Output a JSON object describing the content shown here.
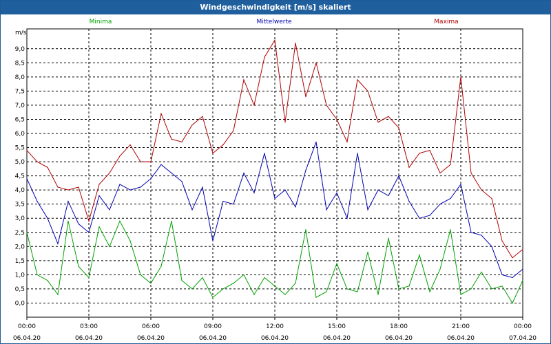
{
  "window": {
    "title": "Windgeschwindigkeit [m/s] skaliert"
  },
  "chart_data": {
    "type": "line",
    "title": "Windgeschwindigkeit [m/s] skaliert",
    "ylabel": "m/s",
    "xlabel": "",
    "ylim": [
      -0.5,
      9.7
    ],
    "y_ticks": [
      "9,0",
      "8,5",
      "8,0",
      "7,5",
      "7,0",
      "6,5",
      "6,0",
      "5,5",
      "5,0",
      "4,5",
      "4,0",
      "3,5",
      "3,0",
      "2,5",
      "2,0",
      "1,5",
      "1,0",
      "0,5",
      "0,0"
    ],
    "x_ticks": [
      {
        "time": "00:00",
        "date": "06.04.20"
      },
      {
        "time": "03:00",
        "date": "06.04.20"
      },
      {
        "time": "06:00",
        "date": "06.04.20"
      },
      {
        "time": "09:00",
        "date": "06.04.20"
      },
      {
        "time": "12:00",
        "date": "06.04.20"
      },
      {
        "time": "15:00",
        "date": "06.04.20"
      },
      {
        "time": "18:00",
        "date": "06.04.20"
      },
      {
        "time": "21:00",
        "date": "06.04.20"
      },
      {
        "time": "00:00",
        "date": "07.04.20"
      }
    ],
    "grid": true,
    "x_hours": [
      0,
      0.5,
      1,
      1.5,
      2,
      2.5,
      3,
      3.5,
      4,
      4.5,
      5,
      5.5,
      6,
      6.5,
      7,
      7.5,
      8,
      8.5,
      9,
      9.5,
      10,
      10.5,
      11,
      11.5,
      12,
      12.5,
      13,
      13.5,
      14,
      14.5,
      15,
      15.5,
      16,
      16.5,
      17,
      17.5,
      18,
      18.5,
      19,
      19.5,
      20,
      20.5,
      21,
      21.5,
      22,
      22.5,
      23,
      23.5,
      24
    ],
    "series": [
      {
        "name": "Minima",
        "color": "#00a000",
        "values": [
          2.5,
          1.0,
          0.8,
          0.3,
          2.9,
          1.3,
          0.9,
          2.7,
          2.0,
          2.9,
          2.2,
          1.0,
          0.7,
          1.3,
          2.9,
          0.8,
          0.5,
          0.9,
          0.2,
          0.5,
          0.7,
          1.0,
          0.3,
          0.9,
          0.6,
          0.3,
          0.7,
          2.6,
          0.2,
          0.4,
          1.4,
          0.5,
          0.4,
          1.8,
          0.3,
          2.3,
          0.5,
          0.6,
          1.7,
          0.4,
          1.2,
          2.6,
          0.3,
          0.5,
          1.1,
          0.5,
          0.6,
          0.0,
          0.8
        ]
      },
      {
        "name": "Mittelwerte",
        "color": "#0000b0",
        "values": [
          4.4,
          3.6,
          3.0,
          2.1,
          3.6,
          2.8,
          2.5,
          3.8,
          3.3,
          4.2,
          4.0,
          4.1,
          4.4,
          4.9,
          4.6,
          4.3,
          3.3,
          4.1,
          2.2,
          3.6,
          3.5,
          4.6,
          3.9,
          5.3,
          3.7,
          4.0,
          3.4,
          4.7,
          5.7,
          3.3,
          3.9,
          3.0,
          5.3,
          3.3,
          4.0,
          3.8,
          4.5,
          3.6,
          3.0,
          3.1,
          3.5,
          3.7,
          4.2,
          2.5,
          2.4,
          2.0,
          1.0,
          0.9,
          1.2
        ]
      },
      {
        "name": "Maxima",
        "color": "#b00000",
        "values": [
          5.4,
          5.0,
          4.8,
          4.1,
          4.0,
          4.1,
          2.9,
          4.2,
          4.6,
          5.2,
          5.6,
          5.0,
          5.0,
          6.7,
          5.8,
          5.7,
          6.3,
          6.6,
          5.3,
          5.6,
          6.1,
          7.9,
          7.0,
          8.7,
          9.3,
          6.4,
          9.2,
          7.3,
          8.5,
          7.0,
          6.5,
          5.7,
          7.9,
          7.5,
          6.4,
          6.6,
          6.2,
          4.8,
          5.3,
          5.4,
          4.6,
          4.9,
          8.0,
          4.6,
          4.0,
          3.7,
          2.2,
          1.6,
          1.9
        ]
      }
    ]
  }
}
